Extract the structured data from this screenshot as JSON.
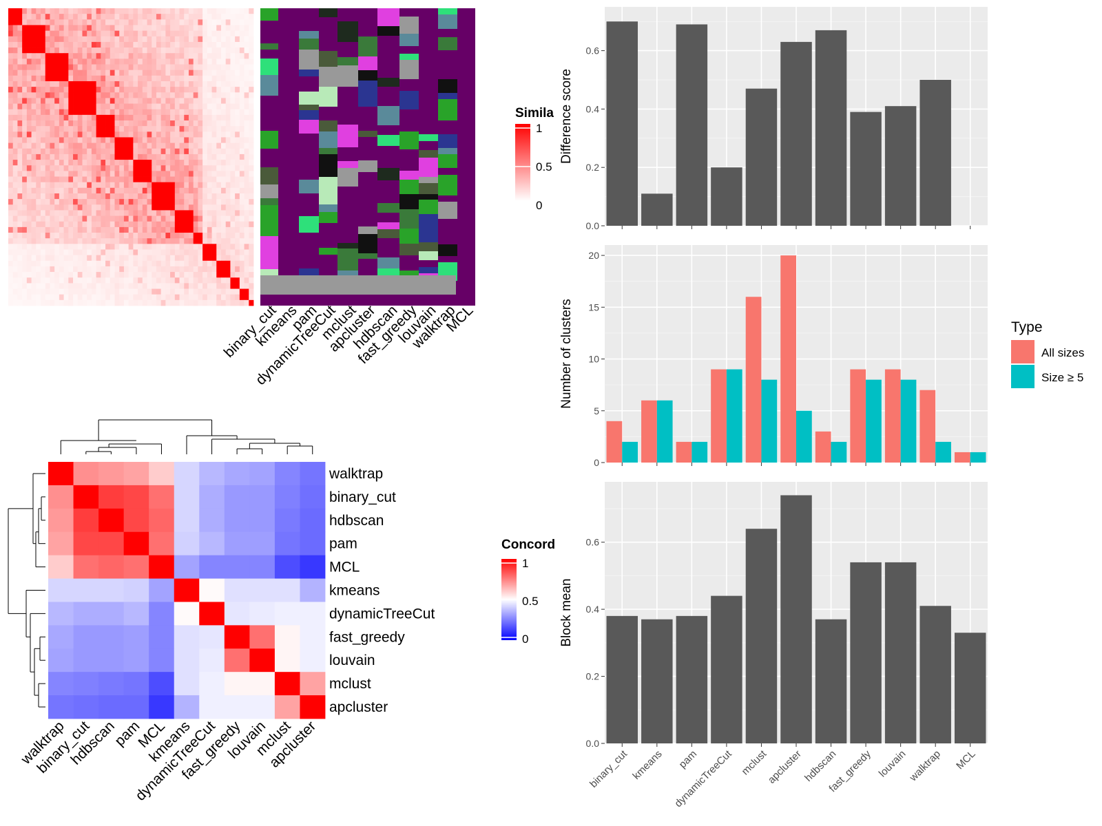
{
  "methods": [
    "binary_cut",
    "kmeans",
    "pam",
    "dynamicTreeCut",
    "mclust",
    "apcluster",
    "hdbscan",
    "fast_greedy",
    "louvain",
    "walktrap",
    "MCL"
  ],
  "colors": {
    "bar_fill": "#595959",
    "panel_bg": "#ebebeb",
    "all_sizes": "#f8766d",
    "size_ge5": "#00bfc4",
    "heat_high": "#ff0000",
    "heat_mid": "#ffffff",
    "heat_low": "#0000ff",
    "cluster_bg": "#660066"
  },
  "similarity_legend": {
    "title": "Simila",
    "ticks": [
      "1",
      "0.5",
      "0"
    ]
  },
  "concordance_legend": {
    "title": "Concord",
    "ticks": [
      "1",
      "0.5",
      "0"
    ]
  },
  "type_legend": {
    "title": "Type",
    "items": [
      "All sizes",
      "Size ≥ 5"
    ]
  },
  "chart_data": [
    {
      "type": "heatmap",
      "name": "similarity-matrix",
      "size": 53,
      "colorscale": [
        "#ffffff",
        "#ff0000"
      ],
      "range": [
        0,
        1
      ],
      "diagonal_blocks": [
        3,
        5,
        5,
        6,
        4,
        4,
        4,
        5,
        4,
        2,
        3,
        3,
        2,
        2,
        3,
        2,
        2,
        4,
        1
      ],
      "cluster_columns": [
        "binary_cut",
        "kmeans",
        "pam",
        "dynamicTreeCut",
        "mclust",
        "apcluster",
        "hdbscan",
        "fast_greedy",
        "louvain",
        "walktrap",
        "MCL"
      ]
    },
    {
      "type": "bar",
      "name": "difference-score",
      "categories": [
        "binary_cut",
        "kmeans",
        "pam",
        "dynamicTreeCut",
        "mclust",
        "apcluster",
        "hdbscan",
        "fast_greedy",
        "louvain",
        "walktrap",
        "MCL"
      ],
      "values": [
        0.7,
        0.11,
        0.69,
        0.2,
        0.47,
        0.63,
        0.67,
        0.39,
        0.41,
        0.5,
        0
      ],
      "ylabel": "Difference score",
      "yticks": [
        0.0,
        0.2,
        0.4,
        0.6
      ],
      "ylim": [
        0,
        0.75
      ]
    },
    {
      "type": "bar",
      "name": "number-of-clusters",
      "categories": [
        "binary_cut",
        "kmeans",
        "pam",
        "dynamicTreeCut",
        "mclust",
        "apcluster",
        "hdbscan",
        "fast_greedy",
        "louvain",
        "walktrap",
        "MCL"
      ],
      "series": [
        {
          "name": "All sizes",
          "values": [
            4,
            6,
            2,
            9,
            16,
            20,
            3,
            9,
            9,
            7,
            1
          ]
        },
        {
          "name": "Size ≥ 5",
          "values": [
            2,
            6,
            2,
            9,
            8,
            5,
            2,
            8,
            8,
            2,
            1
          ]
        }
      ],
      "ylabel": "Number of clusters",
      "yticks": [
        0,
        5,
        10,
        15,
        20
      ],
      "ylim": [
        0,
        21
      ]
    },
    {
      "type": "bar",
      "name": "block-mean",
      "categories": [
        "binary_cut",
        "kmeans",
        "pam",
        "dynamicTreeCut",
        "mclust",
        "apcluster",
        "hdbscan",
        "fast_greedy",
        "louvain",
        "walktrap",
        "MCL"
      ],
      "values": [
        0.38,
        0.37,
        0.38,
        0.44,
        0.64,
        0.74,
        0.37,
        0.54,
        0.54,
        0.41,
        0.33
      ],
      "ylabel": "Block mean",
      "yticks": [
        0.0,
        0.2,
        0.4,
        0.6
      ],
      "ylim": [
        0,
        0.78
      ]
    },
    {
      "type": "heatmap",
      "name": "concordance-matrix",
      "order": [
        "walktrap",
        "binary_cut",
        "hdbscan",
        "pam",
        "MCL",
        "kmeans",
        "dynamicTreeCut",
        "fast_greedy",
        "louvain",
        "mclust",
        "apcluster"
      ],
      "colorscale": [
        "#0000ff",
        "#ffffff",
        "#ff0000"
      ],
      "range": [
        0,
        1
      ],
      "values": [
        [
          1.0,
          0.72,
          0.7,
          0.68,
          0.6,
          0.42,
          0.36,
          0.33,
          0.32,
          0.26,
          0.23
        ],
        [
          0.72,
          1.0,
          0.88,
          0.86,
          0.78,
          0.42,
          0.34,
          0.3,
          0.3,
          0.25,
          0.22
        ],
        [
          0.7,
          0.88,
          1.0,
          0.86,
          0.8,
          0.42,
          0.34,
          0.3,
          0.3,
          0.24,
          0.21
        ],
        [
          0.68,
          0.86,
          0.86,
          1.0,
          0.78,
          0.41,
          0.36,
          0.31,
          0.31,
          0.23,
          0.21
        ],
        [
          0.6,
          0.78,
          0.8,
          0.78,
          1.0,
          0.32,
          0.26,
          0.26,
          0.26,
          0.15,
          0.11
        ],
        [
          0.42,
          0.42,
          0.42,
          0.41,
          0.32,
          1.0,
          0.51,
          0.44,
          0.44,
          0.44,
          0.35
        ],
        [
          0.36,
          0.34,
          0.34,
          0.36,
          0.26,
          0.51,
          1.0,
          0.45,
          0.46,
          0.47,
          0.47
        ],
        [
          0.33,
          0.3,
          0.3,
          0.31,
          0.26,
          0.44,
          0.45,
          1.0,
          0.78,
          0.52,
          0.47
        ],
        [
          0.32,
          0.3,
          0.3,
          0.31,
          0.26,
          0.44,
          0.46,
          0.78,
          1.0,
          0.52,
          0.47
        ],
        [
          0.26,
          0.25,
          0.24,
          0.23,
          0.15,
          0.44,
          0.47,
          0.52,
          0.52,
          1.0,
          0.68
        ],
        [
          0.23,
          0.22,
          0.21,
          0.21,
          0.11,
          0.35,
          0.47,
          0.47,
          0.47,
          0.68,
          1.0
        ]
      ]
    }
  ]
}
